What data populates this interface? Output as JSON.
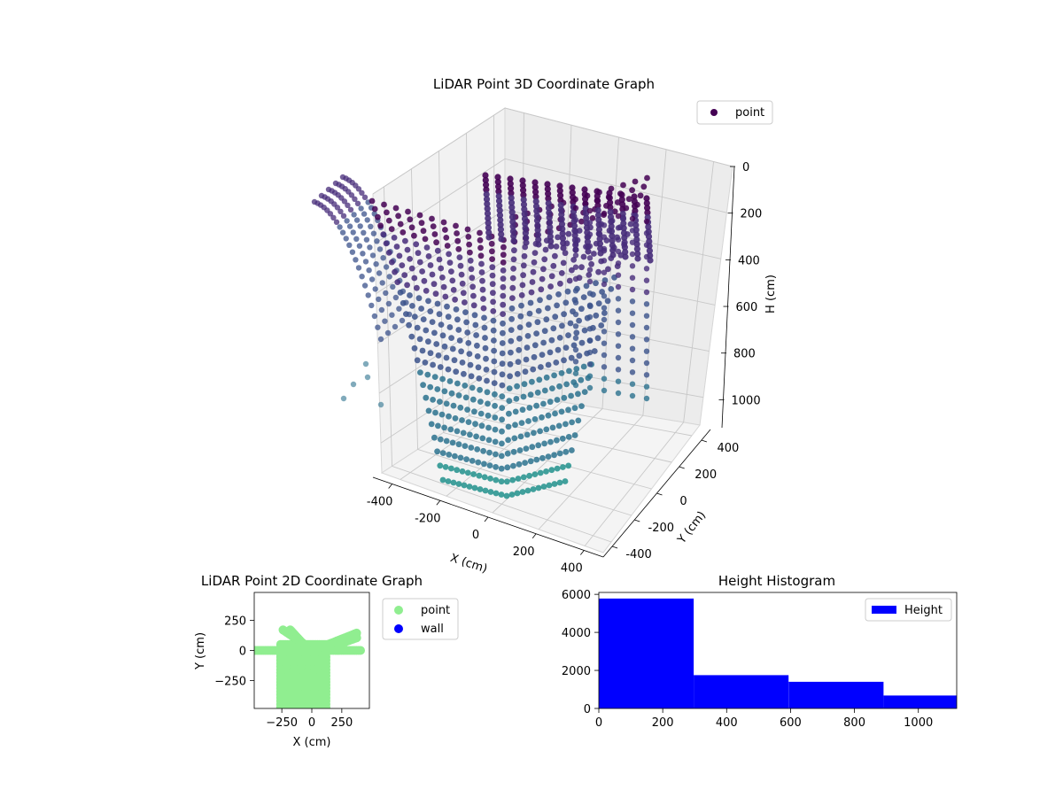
{
  "chart_data": [
    {
      "type": "scatter3d",
      "title": "LiDAR Point 3D Coordinate Graph",
      "xlabel": "X (cm)",
      "ylabel": "Y (cm)",
      "zlabel": "H (cm)",
      "x_ticks": [
        "-400",
        "-200",
        "0",
        "200",
        "400"
      ],
      "y_ticks": [
        "-400",
        "-200",
        "0",
        "200",
        "400"
      ],
      "z_ticks": [
        "0",
        "200",
        "400",
        "600",
        "800",
        "1000"
      ],
      "xlim": [
        -480,
        480
      ],
      "ylim": [
        -480,
        480
      ],
      "zlim": [
        0,
        1120
      ],
      "z_inverted": true,
      "legend": [
        "point"
      ],
      "legend_position": "top-right",
      "colormap": "viridis",
      "colors": {
        "near_top": "#440154",
        "mid": "#3b528b",
        "low": "#2a788e"
      },
      "grid": true
    },
    {
      "type": "scatter",
      "title": "LiDAR Point 2D Coordinate Graph",
      "xlabel": "X (cm)",
      "ylabel": "Y (cm)",
      "x_ticks": [
        "−250",
        "0",
        "250"
      ],
      "y_ticks": [
        "250",
        "0",
        "−250"
      ],
      "xlim": [
        -480,
        480
      ],
      "ylim": [
        -480,
        480
      ],
      "series": [
        {
          "name": "point",
          "color": "#90ee90"
        },
        {
          "name": "wall",
          "color": "#0000ff"
        }
      ],
      "legend_position": "outside-right"
    },
    {
      "type": "bar",
      "title": "Height Histogram",
      "bins": [
        [
          0,
          297
        ],
        [
          297,
          594
        ],
        [
          594,
          891
        ],
        [
          891,
          1120
        ]
      ],
      "values": [
        5780,
        1750,
        1400,
        680
      ],
      "x_ticks": [
        "0",
        "200",
        "400",
        "600",
        "800",
        "1000"
      ],
      "y_ticks": [
        "0",
        "2000",
        "4000",
        "6000"
      ],
      "xlim": [
        0,
        1120
      ],
      "ylim": [
        0,
        6100
      ],
      "series": [
        {
          "name": "Height",
          "color": "#0000ff"
        }
      ],
      "legend_position": "top-right"
    }
  ]
}
